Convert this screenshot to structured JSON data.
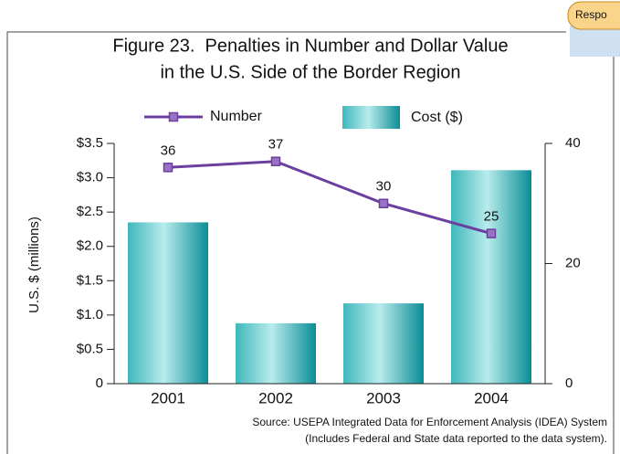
{
  "badge": "Respo",
  "chart_data": {
    "type": "bar_line",
    "title": [
      "Figure 23.  Penalties in Number and Dollar Value",
      "in the U.S. Side of the Border Region"
    ],
    "ylabel": "U.S. $ (millions)",
    "categories": [
      "2001",
      "2002",
      "2003",
      "2004"
    ],
    "series": [
      {
        "name": "Number",
        "type": "line",
        "axis": "y2",
        "color": "#6b3fa0",
        "values": [
          36,
          37,
          30,
          25
        ]
      },
      {
        "name": "Cost ($)",
        "type": "bar",
        "color": "#0a8d96",
        "values": [
          2.35,
          0.88,
          1.17,
          3.11
        ]
      }
    ],
    "ylim": [
      0,
      3.5
    ],
    "yticks": [
      0,
      {
        "value": 0.5,
        "label": "$0.5"
      },
      {
        "value": 1,
        "label": "$1.0"
      },
      {
        "value": 1.5,
        "label": "$1.5"
      },
      {
        "value": 2,
        "label": "$2.0"
      },
      {
        "value": 2.5,
        "label": "$2.5"
      },
      {
        "value": 3,
        "label": "$3.0"
      },
      {
        "value": 3.5,
        "label": "$3.5"
      }
    ],
    "y2lim": [
      0,
      40
    ],
    "y2ticks": [
      0,
      20,
      40
    ],
    "source": [
      "Source: USEPA Integrated Data for Enforcement Analysis (IDEA) System",
      "(Includes Federal and State data reported to the data system)."
    ]
  }
}
